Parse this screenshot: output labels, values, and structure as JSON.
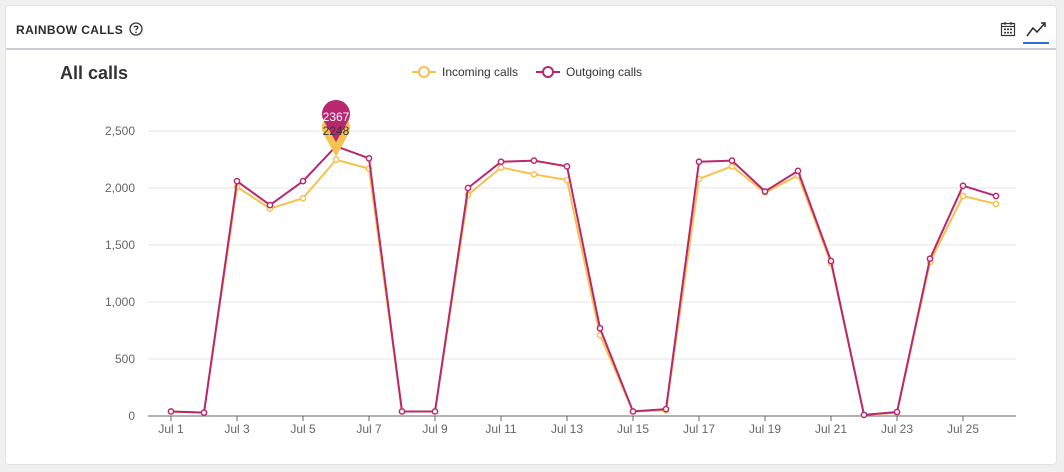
{
  "header": {
    "title": "RAINBOW CALLS",
    "help_icon": "question-circle-icon",
    "calendar_icon": "calendar-icon",
    "trend_icon": "line-chart-icon"
  },
  "colors": {
    "incoming": "#f6c14f",
    "outgoing": "#b9286f",
    "accent": "#2f6bd3",
    "grid": "#e6e6e6",
    "axis": "#666666"
  },
  "chart_data": {
    "type": "line",
    "title": "All calls",
    "xlabel": "",
    "ylabel": "",
    "ylim": [
      0,
      2500
    ],
    "yticks": [
      0,
      500,
      1000,
      1500,
      2000,
      2500
    ],
    "ytick_labels": [
      "0",
      "500",
      "1,000",
      "1,500",
      "2,000",
      "2,500"
    ],
    "categories": [
      "Jul 1",
      "Jul 2",
      "Jul 3",
      "Jul 4",
      "Jul 5",
      "Jul 6",
      "Jul 7",
      "Jul 8",
      "Jul 9",
      "Jul 10",
      "Jul 11",
      "Jul 12",
      "Jul 13",
      "Jul 14",
      "Jul 15",
      "Jul 16",
      "Jul 17",
      "Jul 18",
      "Jul 19",
      "Jul 20",
      "Jul 21",
      "Jul 22",
      "Jul 23",
      "Jul 24",
      "Jul 25",
      "Jul 26"
    ],
    "xtick_labels": [
      "Jul 1",
      "Jul 3",
      "Jul 5",
      "Jul 7",
      "Jul 9",
      "Jul 11",
      "Jul 13",
      "Jul 15",
      "Jul 17",
      "Jul 19",
      "Jul 21",
      "Jul 23",
      "Jul 25"
    ],
    "legend_position": "top-center",
    "grid": true,
    "series": [
      {
        "name": "Incoming calls",
        "color": "#f6c14f",
        "values": [
          40,
          30,
          2010,
          1820,
          1910,
          2248,
          2170,
          40,
          40,
          1940,
          2180,
          2120,
          2070,
          710,
          40,
          50,
          2080,
          2190,
          1960,
          2110,
          1340,
          10,
          30,
          1350,
          1930,
          1860
        ]
      },
      {
        "name": "Outgoing calls",
        "color": "#b9286f",
        "values": [
          40,
          30,
          2060,
          1850,
          2060,
          2367,
          2260,
          40,
          40,
          2000,
          2230,
          2240,
          2190,
          770,
          40,
          60,
          2230,
          2240,
          1970,
          2150,
          1360,
          10,
          35,
          1380,
          2020,
          1930
        ]
      }
    ],
    "tooltip": {
      "category": "Jul 6",
      "outgoing_value": "2367",
      "incoming_value": "2248"
    }
  }
}
